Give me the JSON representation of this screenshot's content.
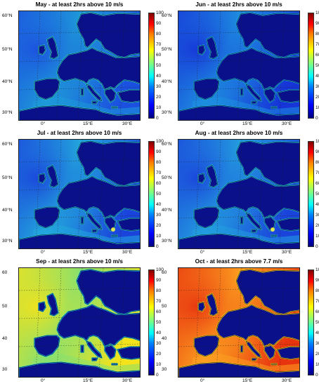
{
  "panels": [
    {
      "title": "May - at least 2hrs above 10 m/s",
      "sea_far": "#1b4fe0",
      "sea_near": "#1e9ad8",
      "coast_glow": "#2fd0e0",
      "land": "#0a0f8a"
    },
    {
      "title": "Jun - at least 2hrs above 10 m/s",
      "sea_far": "#1634d8",
      "sea_near": "#1e8fe0",
      "coast_glow": "#20b8e8",
      "land": "#0a0f8a"
    },
    {
      "title": "Jul - at least 2hrs above 10 m/s",
      "sea_far": "#1a43dc",
      "sea_near": "#23a8dc",
      "coast_glow": "#27c4e0",
      "land": "#0a0f8a"
    },
    {
      "title": "Aug - at least 2hrs above 10 m/s",
      "sea_far": "#1a43dc",
      "sea_near": "#239ede",
      "coast_glow": "#27c4e0",
      "land": "#0a0f8a"
    },
    {
      "title": "Sep - at least 2hrs above 10 m/s",
      "sea_far": "#f4e21a",
      "sea_near": "#86e070",
      "coast_glow": "#20c0e8",
      "land": "#0a0f8a"
    },
    {
      "title": "Oct - at least 2hrs above 7.7 m/s",
      "sea_far": "#e8330f",
      "sea_near": "#fca020",
      "coast_glow": "#f8d020",
      "land": "#0a0f8a"
    }
  ],
  "colorbar_ticks": [
    "100",
    "90",
    "80",
    "70",
    "60",
    "50",
    "40",
    "30",
    "20",
    "10",
    "0"
  ],
  "lat_labels_top": [
    "60°N",
    "50°N",
    "40°N",
    "30°N"
  ],
  "lat_labels_bottom": [
    "60",
    "50",
    "40",
    "30"
  ],
  "lon_labels": [
    "0°",
    "15°E",
    "30°E"
  ],
  "colormap": [
    "#00007f",
    "#0000ff",
    "#0080ff",
    "#00ffff",
    "#80ff80",
    "#ffff00",
    "#ff8000",
    "#ff0000",
    "#7f0000"
  ]
}
